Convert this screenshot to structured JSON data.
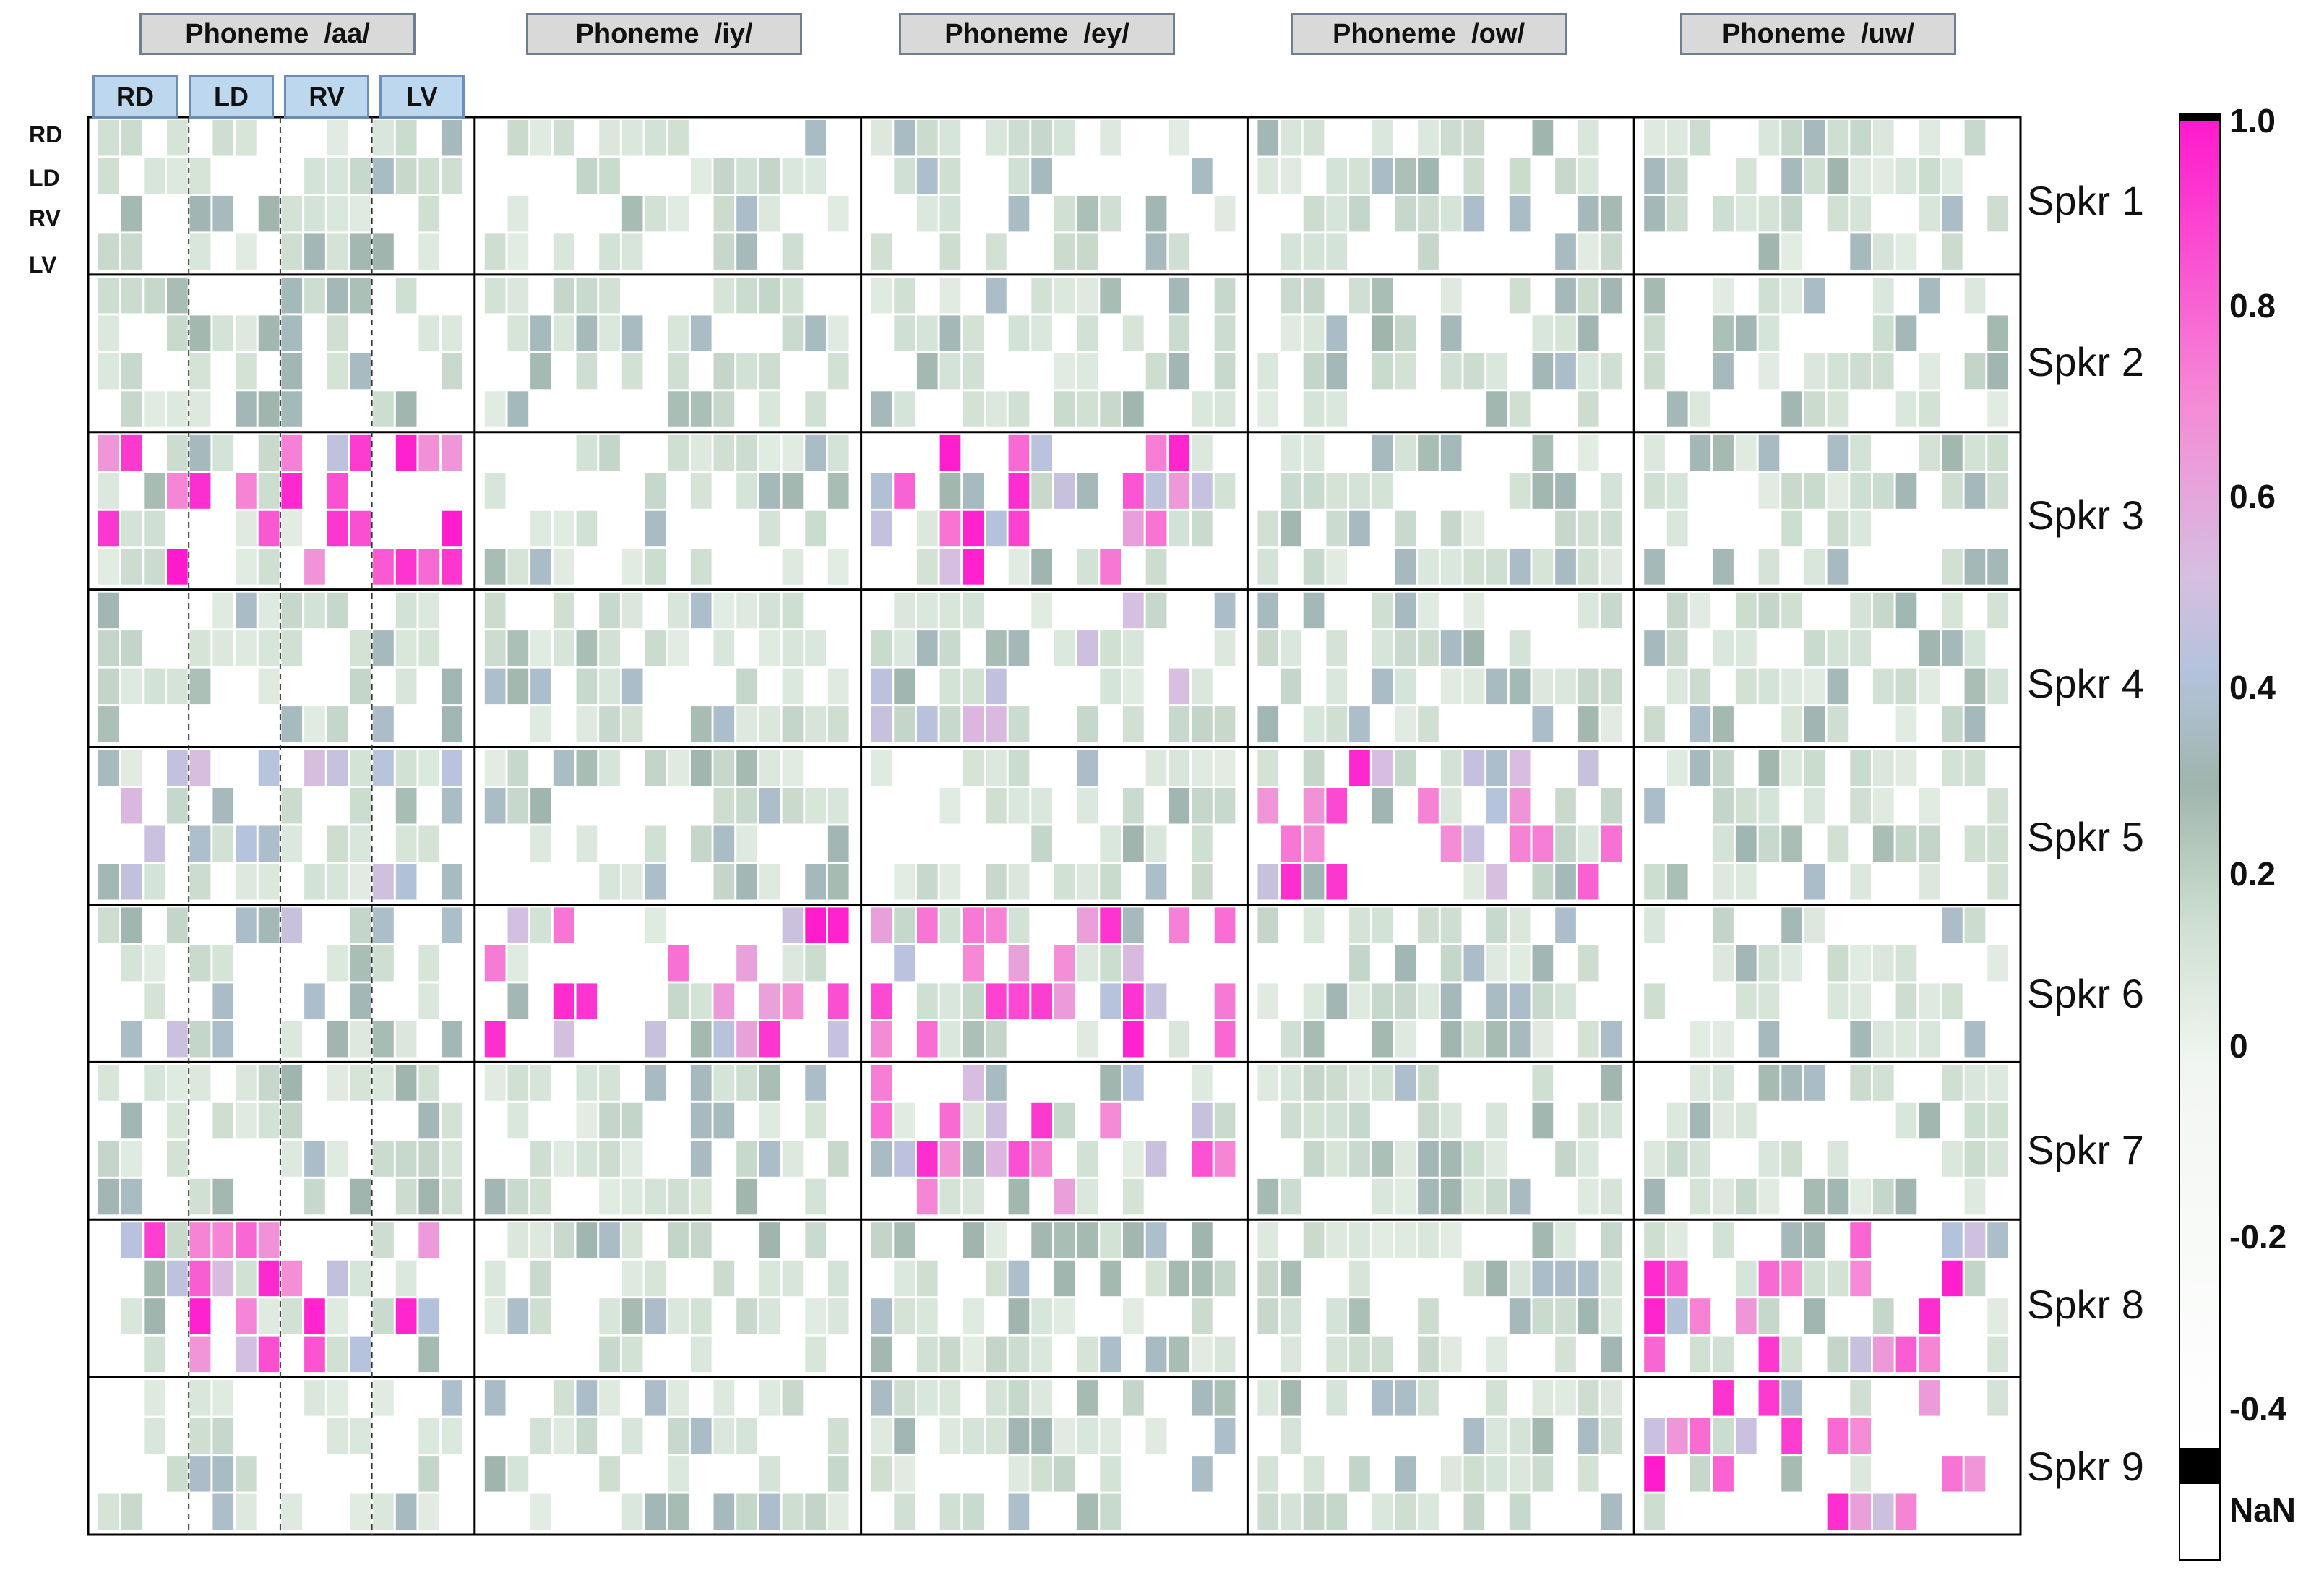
{
  "chart_data": {
    "type": "heatmap",
    "phonemes": [
      "Phoneme  /aa/",
      "Phoneme  /iy/",
      "Phoneme  /ey/",
      "Phoneme  /ow/",
      "Phoneme  /uw/"
    ],
    "region_labels": [
      "RD",
      "LD",
      "RV",
      "LV"
    ],
    "row_labels": [
      "RD",
      "LD",
      "RV",
      "LV"
    ],
    "speakers": [
      "Spkr 1",
      "Spkr 2",
      "Spkr 3",
      "Spkr 4",
      "Spkr 5",
      "Spkr 6",
      "Spkr 7",
      "Spkr 8",
      "Spkr 9"
    ],
    "colorbar": {
      "ticks": [
        "1.0",
        "0.8",
        "0.6",
        "0.4",
        "0.2",
        "0",
        "-0.2",
        "-0.4",
        "NaN"
      ],
      "stops": [
        {
          "v": -0.4,
          "color": "#ffffff"
        },
        {
          "v": 0.0,
          "color": "#f2f6f2"
        },
        {
          "v": 0.15,
          "color": "#cfe0d2"
        },
        {
          "v": 0.3,
          "color": "#9fb5ad"
        },
        {
          "v": 0.42,
          "color": "#b4c3dc"
        },
        {
          "v": 0.52,
          "color": "#d6bfe0"
        },
        {
          "v": 0.7,
          "color": "#f58bd6"
        },
        {
          "v": 1.0,
          "color": "#ff1acd"
        }
      ],
      "nan_color": "#000000"
    },
    "speaker_profiles": [
      {
        "speaker": "Spkr 1",
        "profile": [
          0.2,
          0.2,
          0.2,
          0.2,
          0.2
        ]
      },
      {
        "speaker": "Spkr 2",
        "profile": [
          0.2,
          0.2,
          0.2,
          0.2,
          0.2
        ]
      },
      {
        "speaker": "Spkr 3",
        "profile": [
          1.0,
          0.2,
          0.9,
          0.2,
          0.2
        ]
      },
      {
        "speaker": "Spkr 4",
        "profile": [
          0.2,
          0.2,
          0.45,
          0.2,
          0.2
        ]
      },
      {
        "speaker": "Spkr 5",
        "profile": [
          0.4,
          0.2,
          0.3,
          0.7,
          0.2
        ]
      },
      {
        "speaker": "Spkr 6",
        "profile": [
          0.45,
          0.75,
          0.9,
          0.2,
          0.2
        ]
      },
      {
        "speaker": "Spkr 7",
        "profile": [
          0.2,
          0.2,
          0.9,
          0.3,
          0.2
        ]
      },
      {
        "speaker": "Spkr 8",
        "profile": [
          1.0,
          0.2,
          0.2,
          0.2,
          0.7
        ]
      },
      {
        "speaker": "Spkr 9",
        "profile": [
          0.3,
          0.2,
          0.3,
          0.2,
          1.0
        ]
      }
    ]
  }
}
